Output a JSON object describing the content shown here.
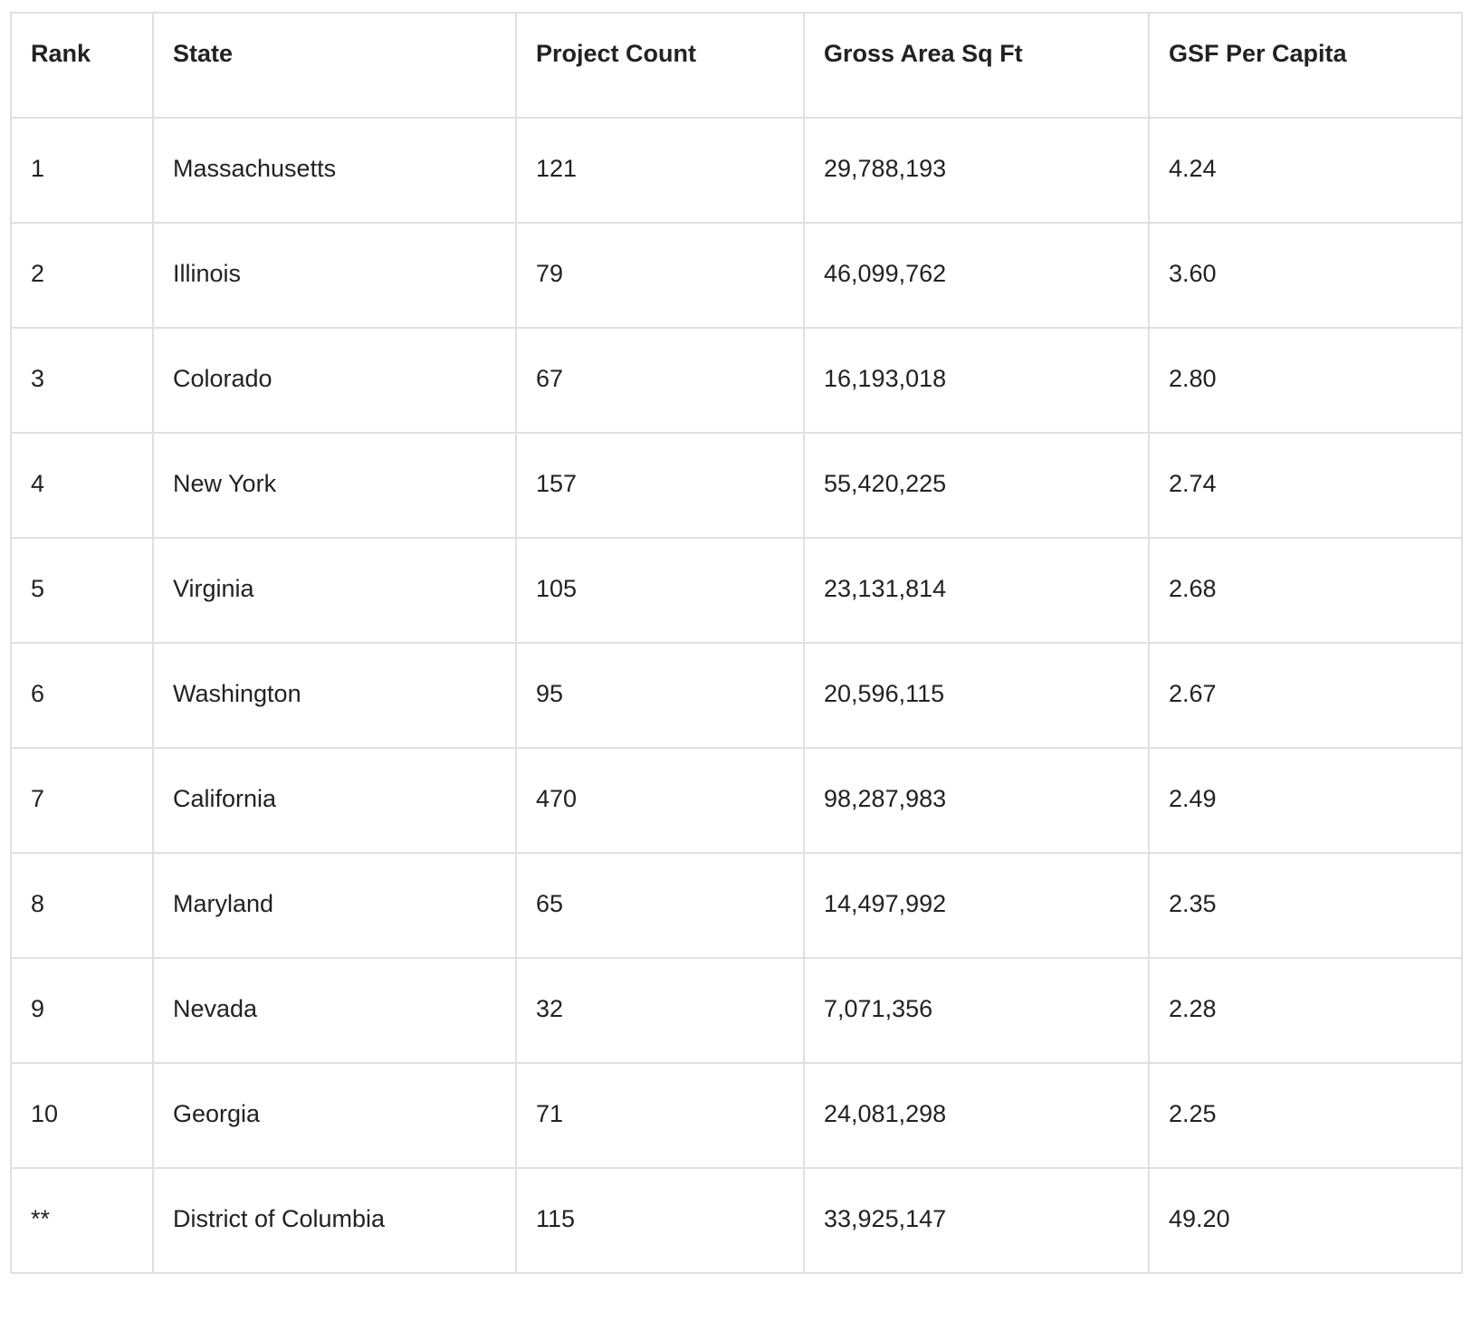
{
  "table": {
    "headers": [
      "Rank",
      "State",
      "Project Count",
      "Gross Area Sq Ft",
      "GSF Per Capita"
    ],
    "rows": [
      [
        "1",
        "Massachusetts",
        "121",
        "29,788,193",
        "4.24"
      ],
      [
        "2",
        "Illinois",
        "79",
        "46,099,762",
        "3.60"
      ],
      [
        "3",
        "Colorado",
        "67",
        "16,193,018",
        "2.80"
      ],
      [
        "4",
        "New York",
        "157",
        "55,420,225",
        "2.74"
      ],
      [
        "5",
        "Virginia",
        "105",
        "23,131,814",
        "2.68"
      ],
      [
        "6",
        "Washington",
        "95",
        "20,596,115",
        "2.67"
      ],
      [
        "7",
        "California",
        "470",
        "98,287,983",
        "2.49"
      ],
      [
        "8",
        "Maryland",
        "65",
        "14,497,992",
        "2.35"
      ],
      [
        "9",
        "Nevada",
        "32",
        "7,071,356",
        "2.28"
      ],
      [
        "10",
        "Georgia",
        "71",
        "24,081,298",
        "2.25"
      ],
      [
        "**",
        "District of Columbia",
        "115",
        "33,925,147",
        "49.20"
      ]
    ]
  }
}
